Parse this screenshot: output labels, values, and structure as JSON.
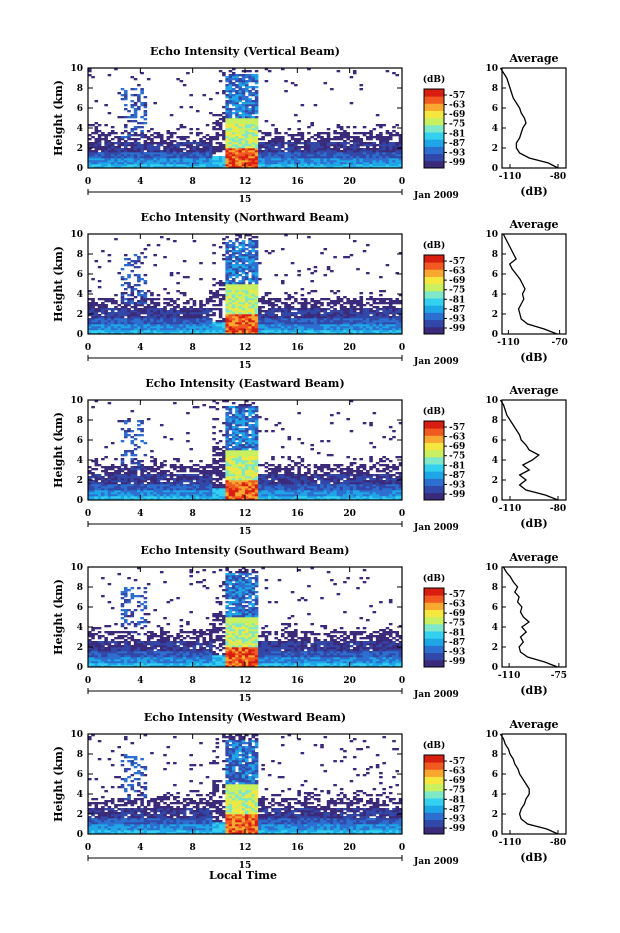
{
  "figure": {
    "xlabel": "Local Time",
    "colors": [
      "#3b2a7a",
      "#3248a8",
      "#2c6fd0",
      "#1ea6e6",
      "#33d0f0",
      "#7fe8c8",
      "#c8f060",
      "#f5e640",
      "#f8a830",
      "#f05a20",
      "#d81e10"
    ]
  },
  "chart_data": [
    {
      "type": "heatmap",
      "title": "Echo Intensity (Vertical Beam)",
      "ylabel": "Height (km)",
      "xlim": [
        0,
        24
      ],
      "ylim": [
        0,
        10
      ],
      "x_ticks": [
        "0",
        "4",
        "8",
        "12",
        "16",
        "20",
        "0"
      ],
      "y_ticks": [
        "0",
        "2",
        "4",
        "6",
        "8",
        "10"
      ],
      "date_marker": "15",
      "date_label": "Jan 2009",
      "colorbar": {
        "unit": "(dB)",
        "labels": [
          "-57",
          "-63",
          "-69",
          "-75",
          "-81",
          "-87",
          "-93",
          "-99"
        ]
      },
      "profile": {
        "title": "Average",
        "xlabel": "(dB)",
        "x_ticks": [
          "-110",
          "-80"
        ],
        "heights": [
          0,
          0.5,
          1,
          1.5,
          2,
          2.5,
          3,
          3.5,
          4,
          4.5,
          5,
          5.5,
          6,
          6.5,
          7,
          7.5,
          8,
          8.5,
          9,
          9.5,
          10
        ],
        "values": [
          -80,
          -86,
          -98,
          -104,
          -106,
          -106,
          -104,
          -103,
          -102,
          -100,
          -101,
          -103,
          -104,
          -106,
          -108,
          -109,
          -110,
          -111,
          -112,
          -114,
          -116
        ]
      }
    },
    {
      "type": "heatmap",
      "title": "Echo Intensity (Northward Beam)",
      "ylabel": "Height (km)",
      "xlim": [
        0,
        24
      ],
      "ylim": [
        0,
        10
      ],
      "x_ticks": [
        "0",
        "4",
        "8",
        "12",
        "16",
        "20",
        "0"
      ],
      "y_ticks": [
        "0",
        "2",
        "4",
        "6",
        "8",
        "10"
      ],
      "date_marker": "15",
      "date_label": "Jan 2009",
      "colorbar": {
        "unit": "(dB)",
        "labels": [
          "-57",
          "-63",
          "-69",
          "-75",
          "-81",
          "-87",
          "-93",
          "-99"
        ]
      },
      "profile": {
        "title": "Average",
        "xlabel": "(dB)",
        "x_ticks": [
          "-110",
          "-70"
        ],
        "heights": [
          0,
          0.5,
          1,
          1.5,
          2,
          2.5,
          3,
          3.5,
          4,
          4.5,
          5,
          5.5,
          6,
          6.5,
          7,
          7.5,
          8,
          8.5,
          9,
          9.5,
          10
        ],
        "values": [
          -72,
          -82,
          -95,
          -100,
          -101,
          -102,
          -100,
          -98,
          -99,
          -97,
          -99,
          -101,
          -104,
          -107,
          -109,
          -104,
          -106,
          -108,
          -110,
          -112,
          -114
        ]
      }
    },
    {
      "type": "heatmap",
      "title": "Echo Intensity (Eastward Beam)",
      "ylabel": "Height (km)",
      "xlim": [
        0,
        24
      ],
      "ylim": [
        0,
        10
      ],
      "x_ticks": [
        "0",
        "4",
        "8",
        "12",
        "16",
        "20",
        "0"
      ],
      "y_ticks": [
        "0",
        "2",
        "4",
        "6",
        "8",
        "10"
      ],
      "date_marker": "15",
      "date_label": "Jan 2009",
      "colorbar": {
        "unit": "(dB)",
        "labels": [
          "-57",
          "-63",
          "-69",
          "-75",
          "-81",
          "-87",
          "-93",
          "-99"
        ]
      },
      "profile": {
        "title": "Average",
        "xlabel": "(dB)",
        "x_ticks": [
          "-110",
          "-80"
        ],
        "heights": [
          0,
          0.5,
          1,
          1.5,
          2,
          2.5,
          3,
          3.5,
          4,
          4.5,
          5,
          5.5,
          6,
          6.5,
          7,
          7.5,
          8,
          8.5,
          9,
          9.5,
          10
        ],
        "values": [
          -80,
          -88,
          -100,
          -104,
          -100,
          -104,
          -98,
          -102,
          -96,
          -92,
          -98,
          -100,
          -103,
          -104,
          -106,
          -108,
          -110,
          -112,
          -113,
          -114,
          -116
        ]
      }
    },
    {
      "type": "heatmap",
      "title": "Echo Intensity (Southward Beam)",
      "ylabel": "Height (km)",
      "xlim": [
        0,
        24
      ],
      "ylim": [
        0,
        10
      ],
      "x_ticks": [
        "0",
        "4",
        "8",
        "12",
        "16",
        "20",
        "0"
      ],
      "y_ticks": [
        "0",
        "2",
        "4",
        "6",
        "8",
        "10"
      ],
      "date_marker": "15",
      "date_label": "Jan 2009",
      "colorbar": {
        "unit": "(dB)",
        "labels": [
          "-57",
          "-63",
          "-69",
          "-75",
          "-81",
          "-87",
          "-93",
          "-99"
        ]
      },
      "profile": {
        "title": "Average",
        "xlabel": "(dB)",
        "x_ticks": [
          "-110",
          "-75"
        ],
        "heights": [
          0,
          0.5,
          1,
          1.5,
          2,
          2.5,
          3,
          3.5,
          4,
          4.5,
          5,
          5.5,
          6,
          6.5,
          7,
          7.5,
          8,
          8.5,
          9,
          9.5,
          10
        ],
        "values": [
          -76,
          -85,
          -97,
          -102,
          -103,
          -100,
          -102,
          -98,
          -101,
          -96,
          -100,
          -102,
          -101,
          -104,
          -103,
          -106,
          -104,
          -107,
          -109,
          -112,
          -114
        ]
      }
    },
    {
      "type": "heatmap",
      "title": "Echo Intensity (Westward Beam)",
      "ylabel": "Height (km)",
      "xlim": [
        0,
        24
      ],
      "ylim": [
        0,
        10
      ],
      "x_ticks": [
        "0",
        "4",
        "8",
        "12",
        "16",
        "20",
        "0"
      ],
      "y_ticks": [
        "0",
        "2",
        "4",
        "6",
        "8",
        "10"
      ],
      "date_marker": "15",
      "date_label": "Jan 2009",
      "colorbar": {
        "unit": "(dB)",
        "labels": [
          "-57",
          "-63",
          "-69",
          "-75",
          "-81",
          "-87",
          "-93",
          "-99"
        ]
      },
      "profile": {
        "title": "Average",
        "xlabel": "(dB)",
        "x_ticks": [
          "-110",
          "-80"
        ],
        "heights": [
          0,
          0.5,
          1,
          1.5,
          2,
          2.5,
          3,
          3.5,
          4,
          4.5,
          5,
          5.5,
          6,
          6.5,
          7,
          7.5,
          8,
          8.5,
          9,
          9.5,
          10
        ],
        "values": [
          -80,
          -87,
          -99,
          -103,
          -104,
          -103,
          -101,
          -100,
          -98,
          -98,
          -100,
          -102,
          -104,
          -105,
          -107,
          -108,
          -110,
          -111,
          -113,
          -114,
          -116
        ]
      }
    }
  ]
}
